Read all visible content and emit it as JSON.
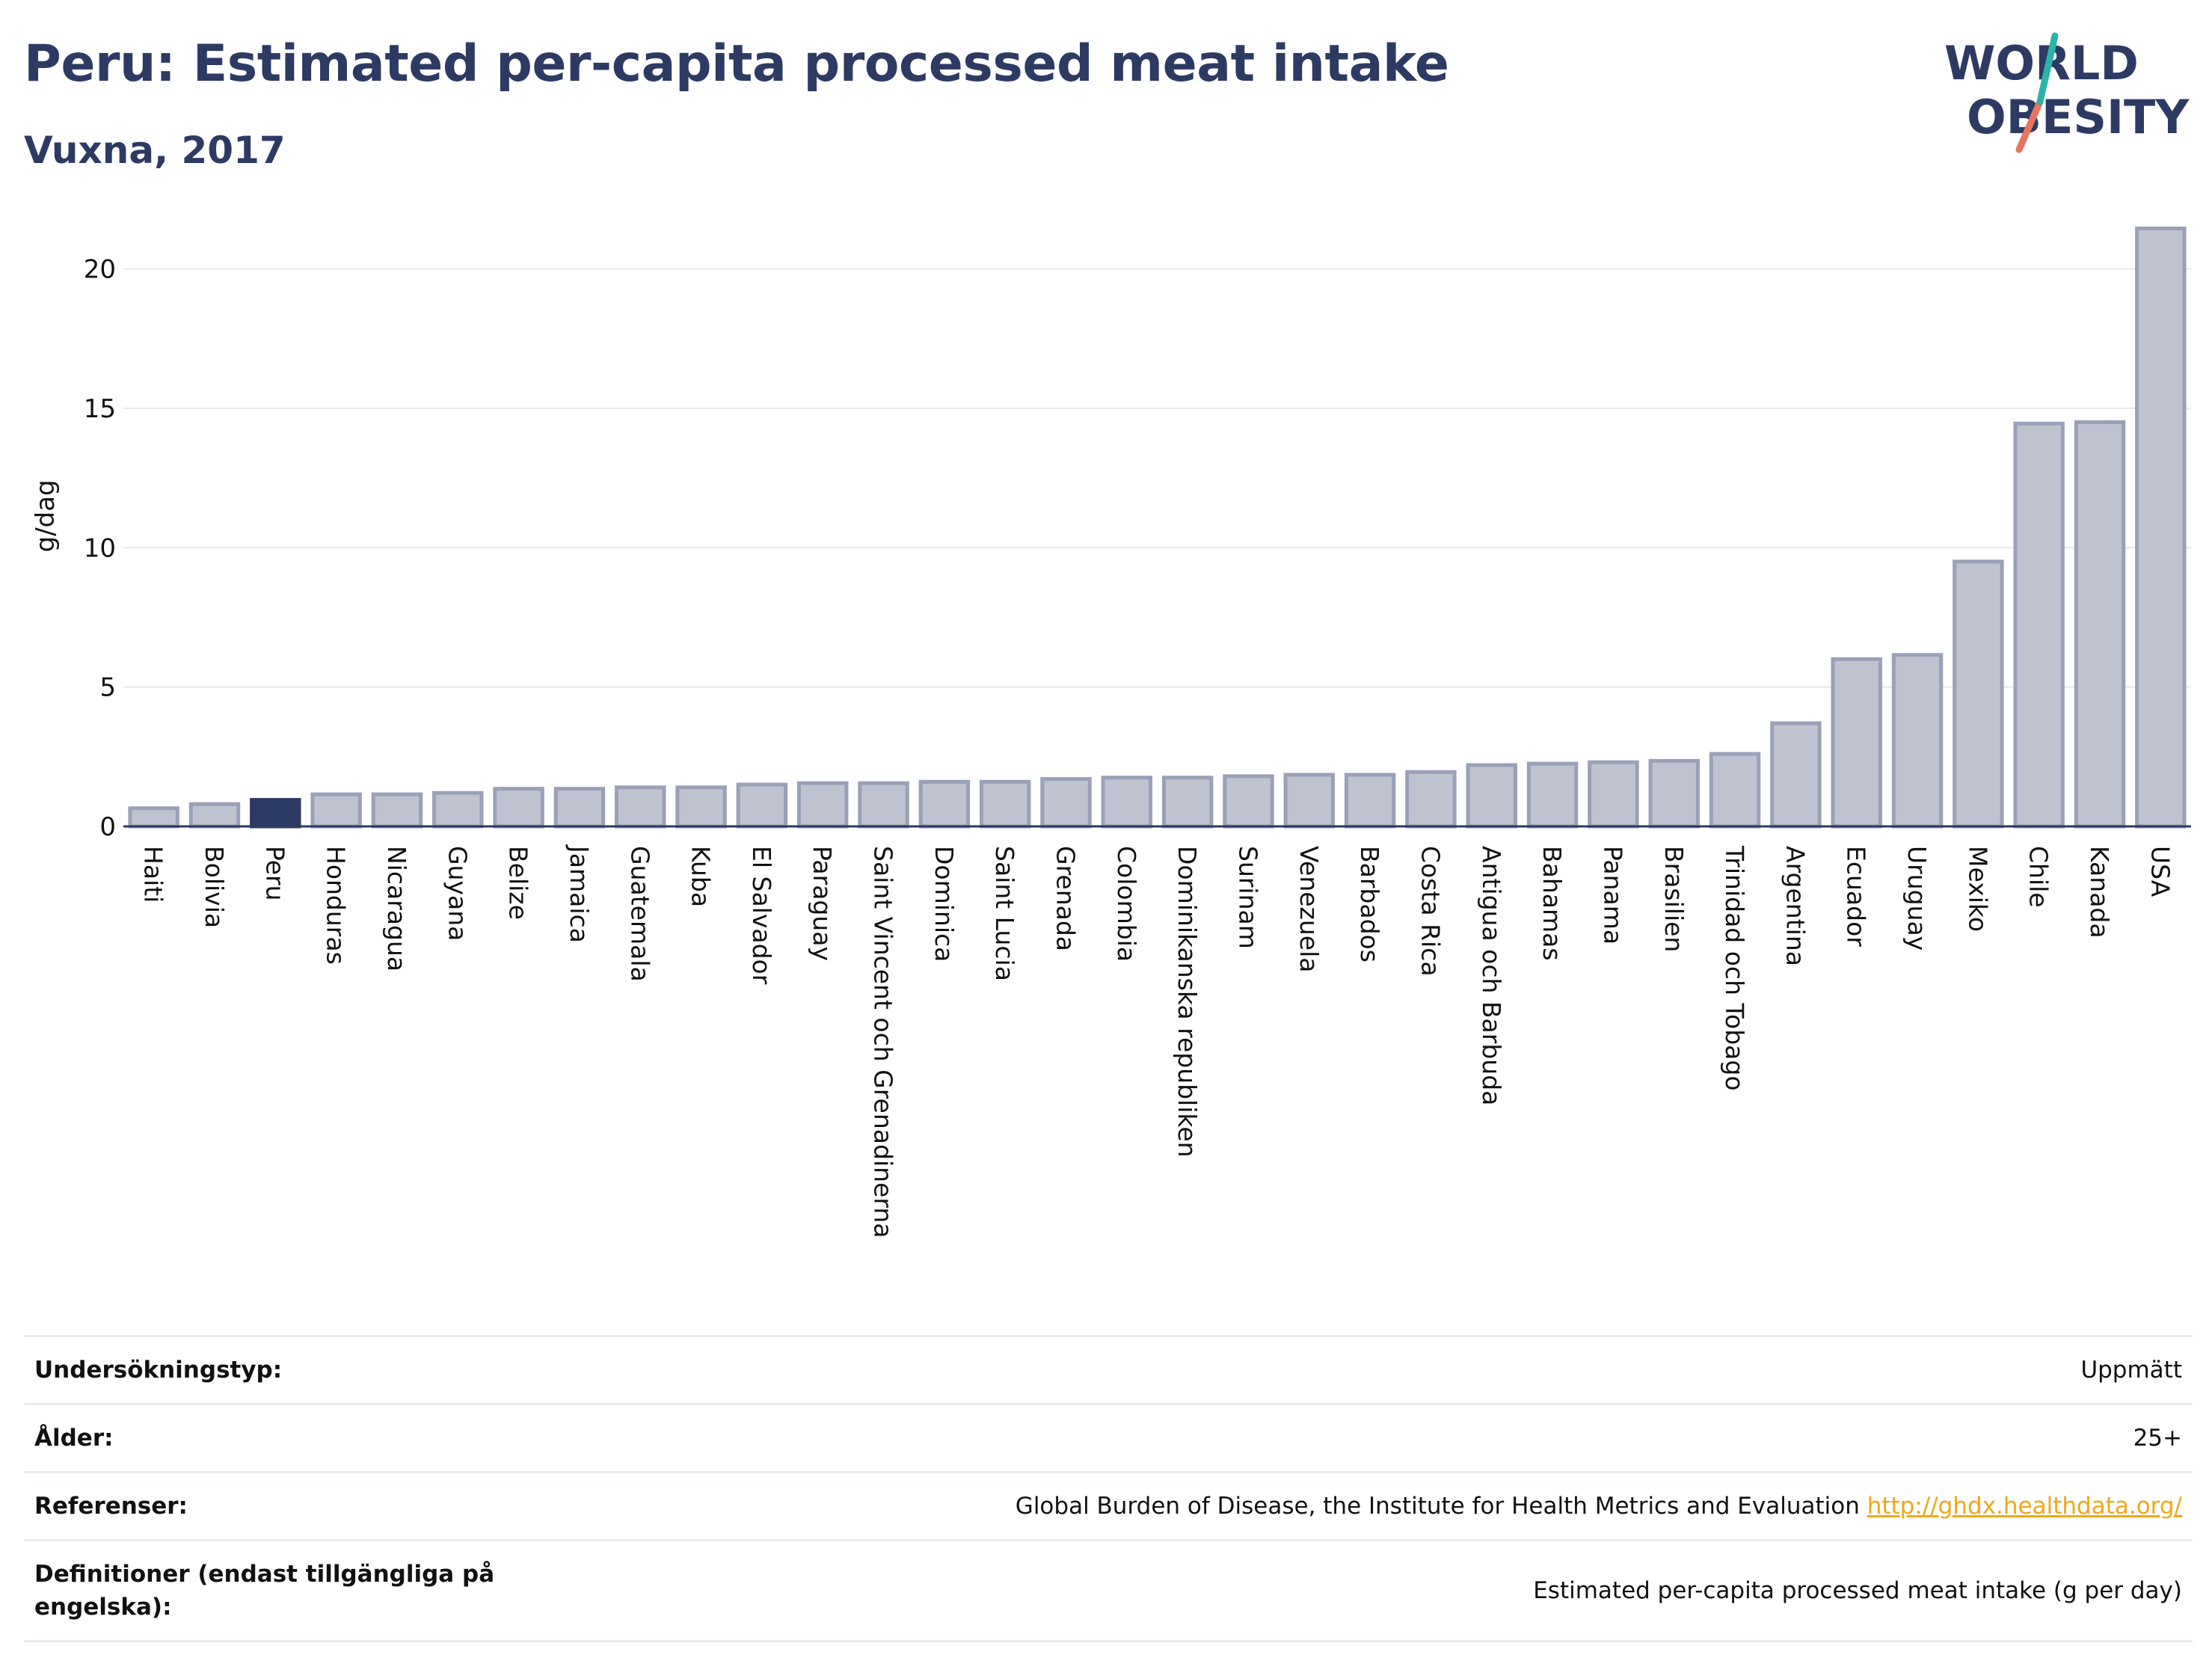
{
  "header": {
    "title": "Peru: Estimated per-capita processed meat intake",
    "subtitle": "Vuxna, 2017"
  },
  "logo": {
    "line1": "WORLD",
    "line2": "OBESITY"
  },
  "colors": {
    "title": "#2d3a63",
    "bar": "#bfc3d0",
    "bar_stroke": "#9aa0b8",
    "highlight": "#2d3a63",
    "logo_teal": "#2bb3a8",
    "logo_coral": "#e8735f",
    "link": "#f0a818"
  },
  "chart_data": {
    "type": "bar",
    "ylabel": "g/dag",
    "ylim": [
      0,
      22
    ],
    "yticks": [
      0,
      5,
      10,
      15,
      20
    ],
    "grid": true,
    "highlight": "Peru",
    "categories": [
      "Haiti",
      "Bolivia",
      "Peru",
      "Honduras",
      "Nicaragua",
      "Guyana",
      "Belize",
      "Jamaica",
      "Guatemala",
      "Kuba",
      "El Salvador",
      "Paraguay",
      "Saint Vincent och Grenadinerna",
      "Dominica",
      "Saint Lucia",
      "Grenada",
      "Colombia",
      "Dominikanska republiken",
      "Surinam",
      "Venezuela",
      "Barbados",
      "Costa Rica",
      "Antigua och Barbuda",
      "Bahamas",
      "Panama",
      "Brasilien",
      "Trinidad och Tobago",
      "Argentina",
      "Ecuador",
      "Uruguay",
      "Mexiko",
      "Chile",
      "Kanada",
      "USA"
    ],
    "values": [
      0.65,
      0.8,
      0.95,
      1.15,
      1.15,
      1.2,
      1.35,
      1.35,
      1.4,
      1.4,
      1.5,
      1.55,
      1.55,
      1.6,
      1.6,
      1.7,
      1.75,
      1.75,
      1.8,
      1.85,
      1.85,
      1.95,
      2.2,
      2.25,
      2.3,
      2.35,
      2.6,
      3.7,
      6.0,
      6.15,
      9.5,
      14.45,
      14.5,
      21.45
    ]
  },
  "meta": [
    {
      "label": "Undersökningstyp:",
      "value": "Uppmätt"
    },
    {
      "label": "Ålder:",
      "value": "25+"
    },
    {
      "label": "Referenser:",
      "value": "Global Burden of Disease, the Institute for Health Metrics and Evaluation",
      "link": "http://ghdx.healthdata.org/"
    },
    {
      "label": "Definitioner (endast tillgängliga på engelska):",
      "value": "Estimated per-capita processed meat intake (g per day)"
    }
  ]
}
